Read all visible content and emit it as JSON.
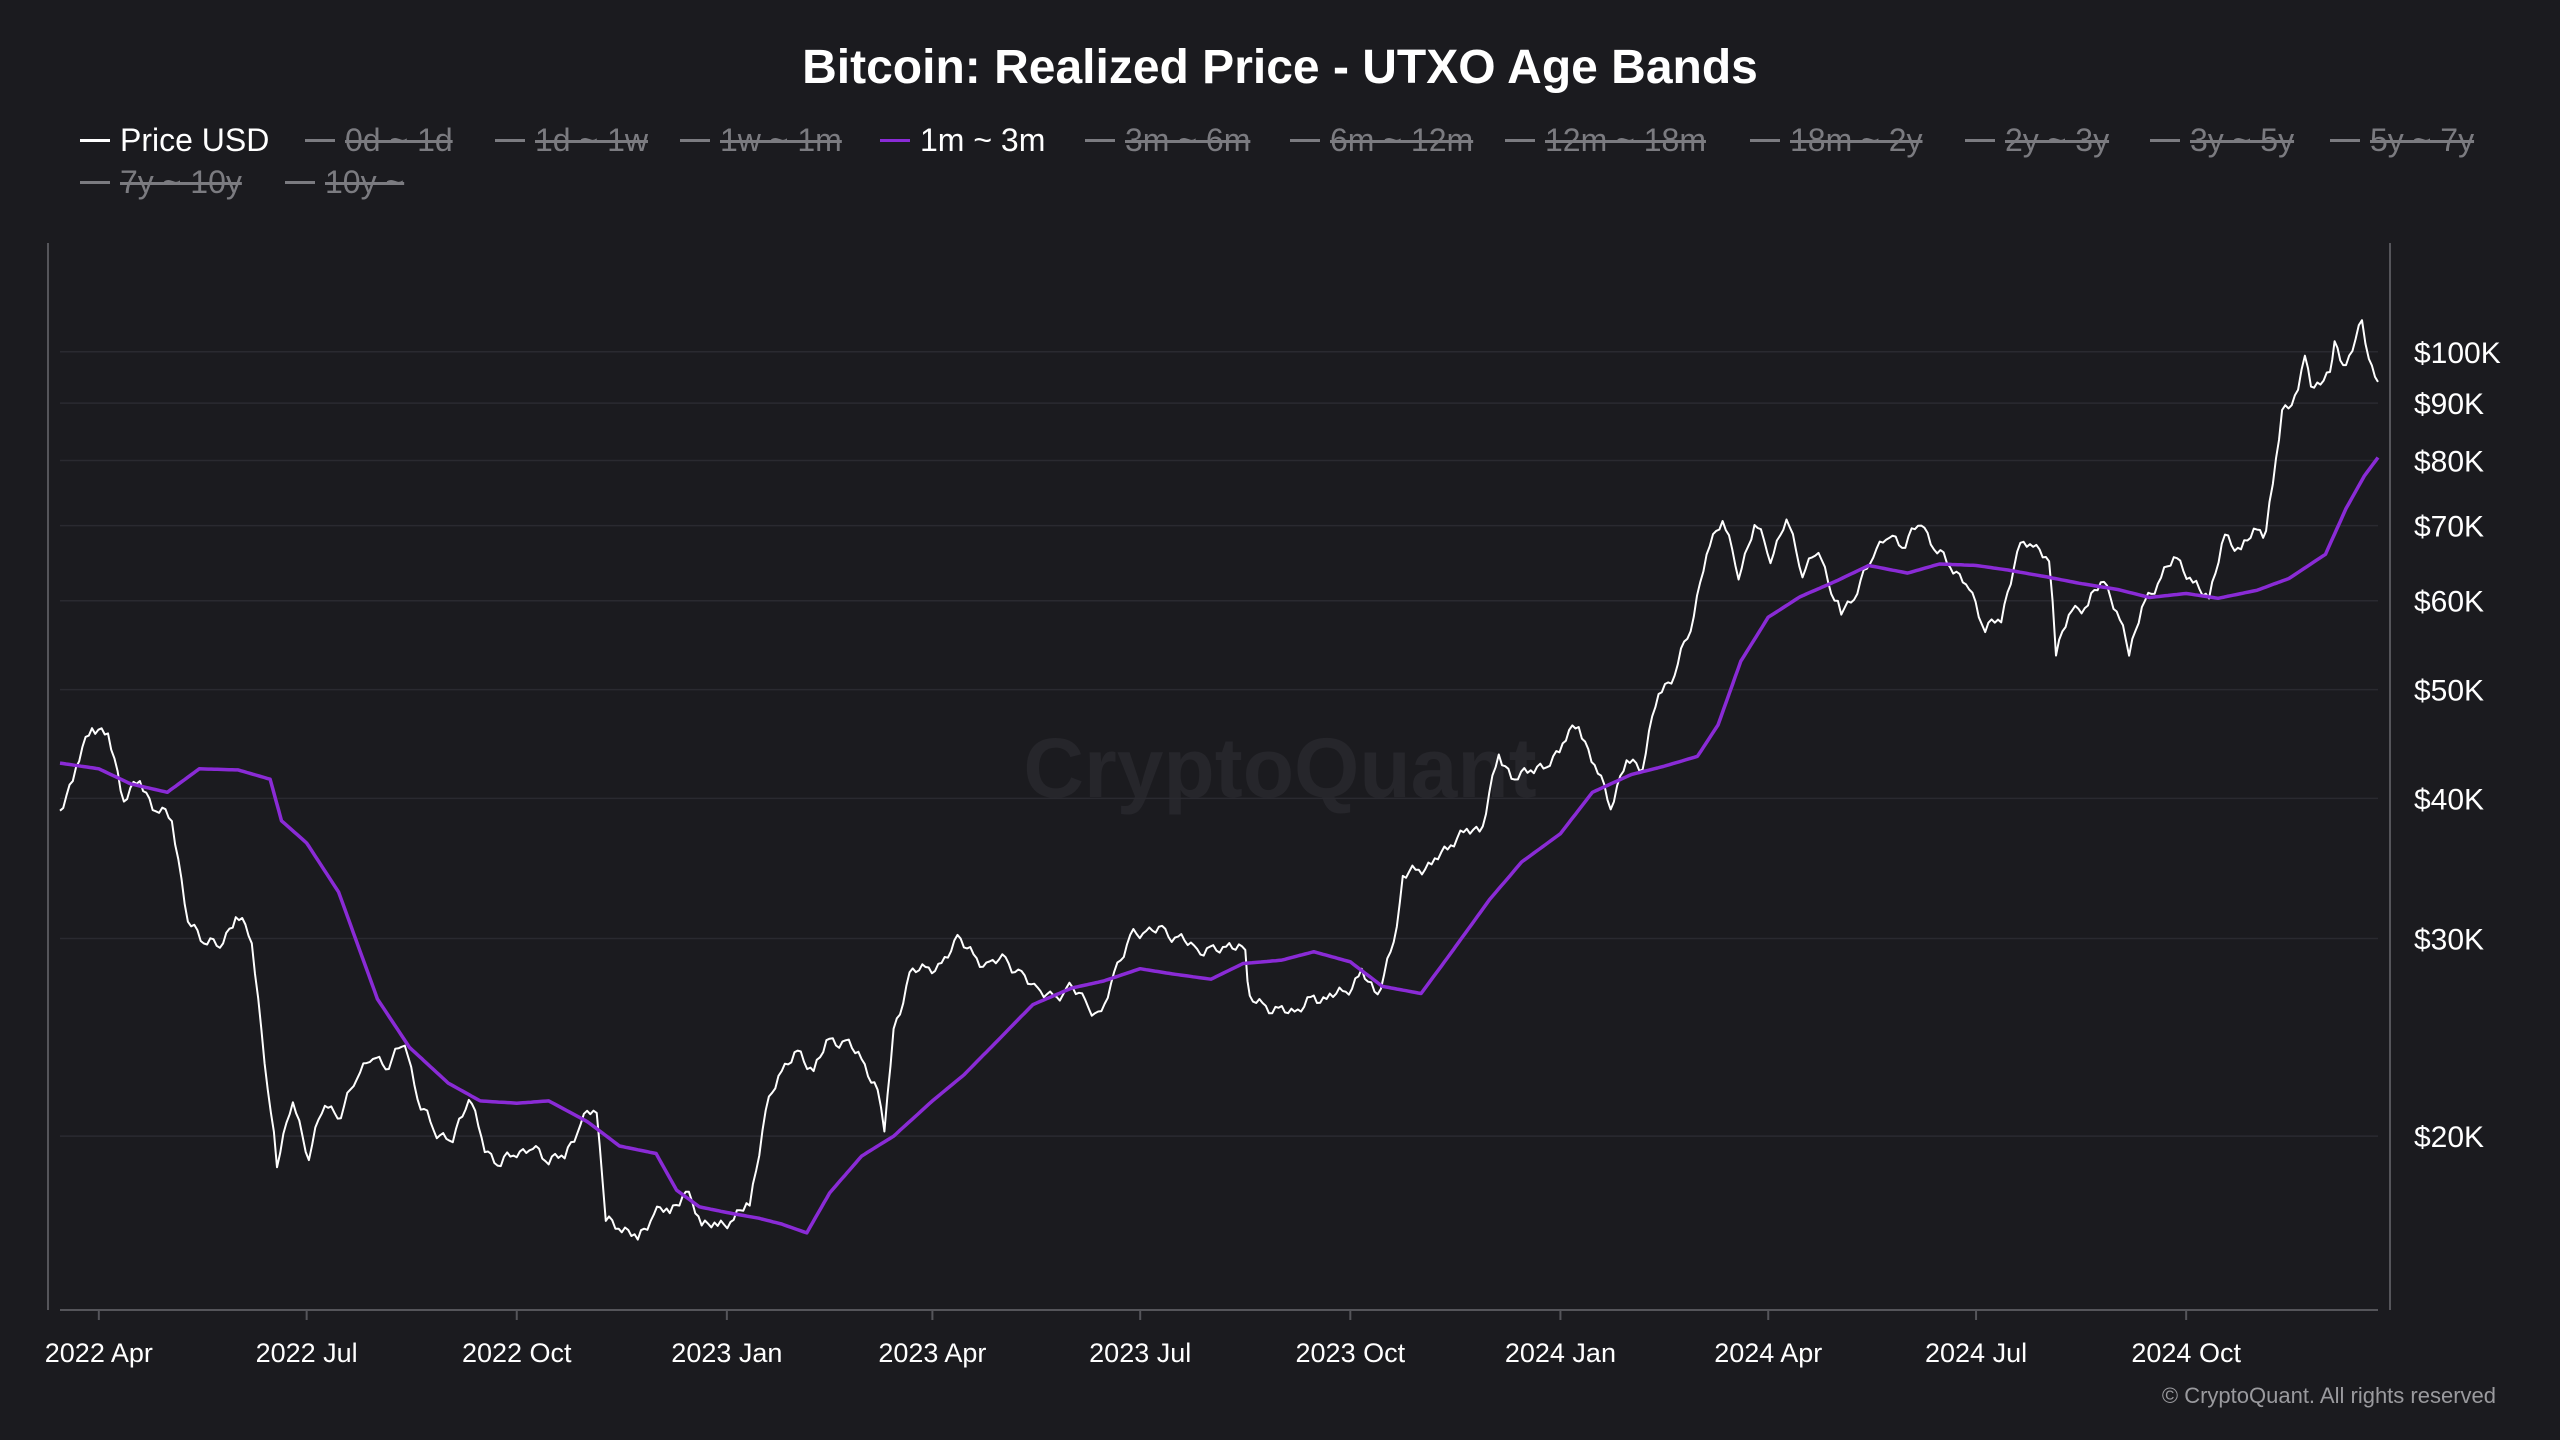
{
  "header": {
    "title": "Bitcoin: Realized Price - UTXO Age Bands"
  },
  "watermark": "CryptoQuant",
  "copyright": "© CryptoQuant. All rights reserved",
  "colors": {
    "background": "#1b1b1f",
    "price_line": "#ffffff",
    "band_1m_3m": "#8a2bd6",
    "legend_disabled": "#7b7b80",
    "grid": "#2a2a30",
    "axis": "#55555a"
  },
  "legend": {
    "items": [
      {
        "label": "Price USD",
        "enabled": true,
        "color": "#ffffff"
      },
      {
        "label": "0d ~ 1d",
        "enabled": false
      },
      {
        "label": "1d ~ 1w",
        "enabled": false
      },
      {
        "label": "1w ~ 1m",
        "enabled": false
      },
      {
        "label": "1m ~ 3m",
        "enabled": true,
        "color": "#8a2bd6"
      },
      {
        "label": "3m ~ 6m",
        "enabled": false
      },
      {
        "label": "6m ~ 12m",
        "enabled": false
      },
      {
        "label": "12m ~ 18m",
        "enabled": false
      },
      {
        "label": "18m ~ 2y",
        "enabled": false
      },
      {
        "label": "2y ~ 3y",
        "enabled": false
      },
      {
        "label": "3y ~ 5y",
        "enabled": false
      },
      {
        "label": "5y ~ 7y",
        "enabled": false
      },
      {
        "label": "7y ~ 10y",
        "enabled": false
      },
      {
        "label": "10y ~",
        "enabled": false
      }
    ]
  },
  "chart_data": {
    "type": "line",
    "title": "Bitcoin: Realized Price - UTXO Age Bands",
    "y_scale": "log",
    "ylim": [
      14000,
      125000
    ],
    "xlim": [
      "2022-03-15",
      "2024-12-24"
    ],
    "x_ticks": [
      {
        "date": "2022-04-01",
        "label": "2022 Apr"
      },
      {
        "date": "2022-07-01",
        "label": "2022 Jul"
      },
      {
        "date": "2022-10-01",
        "label": "2022 Oct"
      },
      {
        "date": "2023-01-01",
        "label": "2023 Jan"
      },
      {
        "date": "2023-04-01",
        "label": "2023 Apr"
      },
      {
        "date": "2023-07-01",
        "label": "2023 Jul"
      },
      {
        "date": "2023-10-01",
        "label": "2023 Oct"
      },
      {
        "date": "2024-01-01",
        "label": "2024 Jan"
      },
      {
        "date": "2024-04-01",
        "label": "2024 Apr"
      },
      {
        "date": "2024-07-01",
        "label": "2024 Jul"
      },
      {
        "date": "2024-10-01",
        "label": "2024 Oct"
      }
    ],
    "y_ticks": [
      {
        "value": 20000,
        "label": "$20K"
      },
      {
        "value": 30000,
        "label": "$30K"
      },
      {
        "value": 40000,
        "label": "$40K"
      },
      {
        "value": 50000,
        "label": "$50K"
      },
      {
        "value": 60000,
        "label": "$60K"
      },
      {
        "value": 70000,
        "label": "$70K"
      },
      {
        "value": 80000,
        "label": "$80K"
      },
      {
        "value": 90000,
        "label": "$90K"
      },
      {
        "value": 100000,
        "label": "$100K"
      }
    ],
    "grid": true,
    "legend_position": "top",
    "series": [
      {
        "name": "Price USD",
        "color": "#ffffff",
        "points": [
          [
            "2022-03-15",
            39000
          ],
          [
            "2022-03-22",
            42500
          ],
          [
            "2022-03-29",
            46500
          ],
          [
            "2022-04-05",
            45500
          ],
          [
            "2022-04-12",
            40000
          ],
          [
            "2022-04-19",
            41500
          ],
          [
            "2022-04-26",
            39000
          ],
          [
            "2022-05-03",
            38500
          ],
          [
            "2022-05-10",
            31000
          ],
          [
            "2022-05-17",
            30000
          ],
          [
            "2022-05-24",
            29500
          ],
          [
            "2022-05-31",
            31500
          ],
          [
            "2022-06-07",
            30000
          ],
          [
            "2022-06-14",
            22000
          ],
          [
            "2022-06-18",
            19000
          ],
          [
            "2022-06-25",
            21500
          ],
          [
            "2022-07-02",
            19200
          ],
          [
            "2022-07-09",
            21500
          ],
          [
            "2022-07-16",
            20800
          ],
          [
            "2022-07-23",
            22800
          ],
          [
            "2022-07-30",
            23500
          ],
          [
            "2022-08-06",
            23200
          ],
          [
            "2022-08-13",
            24300
          ],
          [
            "2022-08-20",
            21200
          ],
          [
            "2022-08-27",
            20200
          ],
          [
            "2022-09-03",
            19800
          ],
          [
            "2022-09-10",
            21800
          ],
          [
            "2022-09-17",
            19500
          ],
          [
            "2022-09-24",
            18900
          ],
          [
            "2022-10-01",
            19400
          ],
          [
            "2022-10-08",
            19500
          ],
          [
            "2022-10-15",
            19100
          ],
          [
            "2022-10-22",
            19200
          ],
          [
            "2022-10-29",
            20600
          ],
          [
            "2022-11-05",
            21200
          ],
          [
            "2022-11-09",
            16800
          ],
          [
            "2022-11-16",
            16600
          ],
          [
            "2022-11-23",
            16200
          ],
          [
            "2022-11-30",
            17100
          ],
          [
            "2022-12-07",
            17200
          ],
          [
            "2022-12-14",
            17800
          ],
          [
            "2022-12-21",
            16800
          ],
          [
            "2022-12-28",
            16600
          ],
          [
            "2023-01-04",
            16900
          ],
          [
            "2023-01-11",
            17400
          ],
          [
            "2023-01-18",
            21000
          ],
          [
            "2023-01-25",
            23000
          ],
          [
            "2023-02-01",
            23700
          ],
          [
            "2023-02-08",
            22900
          ],
          [
            "2023-02-15",
            24400
          ],
          [
            "2023-02-22",
            24200
          ],
          [
            "2023-03-01",
            23500
          ],
          [
            "2023-03-08",
            21800
          ],
          [
            "2023-03-11",
            20200
          ],
          [
            "2023-03-15",
            24800
          ],
          [
            "2023-03-22",
            27800
          ],
          [
            "2023-03-29",
            28300
          ],
          [
            "2023-04-05",
            28200
          ],
          [
            "2023-04-12",
            30200
          ],
          [
            "2023-04-19",
            28800
          ],
          [
            "2023-04-26",
            28400
          ],
          [
            "2023-05-03",
            28800
          ],
          [
            "2023-05-10",
            27700
          ],
          [
            "2023-05-17",
            27100
          ],
          [
            "2023-05-24",
            26400
          ],
          [
            "2023-05-31",
            27200
          ],
          [
            "2023-06-07",
            26300
          ],
          [
            "2023-06-14",
            25500
          ],
          [
            "2023-06-21",
            28500
          ],
          [
            "2023-06-28",
            30200
          ],
          [
            "2023-07-05",
            30500
          ],
          [
            "2023-07-12",
            30400
          ],
          [
            "2023-07-19",
            29900
          ],
          [
            "2023-07-26",
            29300
          ],
          [
            "2023-08-02",
            29200
          ],
          [
            "2023-08-09",
            29600
          ],
          [
            "2023-08-16",
            29100
          ],
          [
            "2023-08-18",
            26400
          ],
          [
            "2023-08-25",
            26100
          ],
          [
            "2023-09-01",
            25800
          ],
          [
            "2023-09-08",
            25900
          ],
          [
            "2023-09-15",
            26500
          ],
          [
            "2023-09-22",
            26600
          ],
          [
            "2023-09-29",
            26900
          ],
          [
            "2023-10-06",
            27900
          ],
          [
            "2023-10-13",
            26800
          ],
          [
            "2023-10-20",
            29600
          ],
          [
            "2023-10-24",
            34000
          ],
          [
            "2023-10-31",
            34600
          ],
          [
            "2023-11-07",
            35100
          ],
          [
            "2023-11-14",
            36500
          ],
          [
            "2023-11-21",
            37400
          ],
          [
            "2023-11-28",
            37800
          ],
          [
            "2023-12-05",
            43900
          ],
          [
            "2023-12-12",
            41400
          ],
          [
            "2023-12-19",
            42700
          ],
          [
            "2023-12-26",
            42500
          ],
          [
            "2024-01-02",
            45000
          ],
          [
            "2024-01-09",
            46500
          ],
          [
            "2024-01-16",
            42800
          ],
          [
            "2024-01-23",
            39500
          ],
          [
            "2024-01-30",
            43200
          ],
          [
            "2024-02-06",
            42800
          ],
          [
            "2024-02-13",
            49800
          ],
          [
            "2024-02-20",
            51600
          ],
          [
            "2024-02-27",
            57000
          ],
          [
            "2024-03-05",
            66000
          ],
          [
            "2024-03-12",
            71500
          ],
          [
            "2024-03-19",
            63000
          ],
          [
            "2024-03-26",
            70500
          ],
          [
            "2024-04-02",
            65600
          ],
          [
            "2024-04-09",
            71000
          ],
          [
            "2024-04-16",
            63800
          ],
          [
            "2024-04-23",
            66500
          ],
          [
            "2024-04-30",
            60500
          ],
          [
            "2024-05-03",
            59000
          ],
          [
            "2024-05-10",
            61000
          ],
          [
            "2024-05-17",
            66500
          ],
          [
            "2024-05-24",
            68500
          ],
          [
            "2024-05-31",
            67500
          ],
          [
            "2024-06-07",
            70700
          ],
          [
            "2024-06-14",
            66300
          ],
          [
            "2024-06-21",
            64300
          ],
          [
            "2024-06-28",
            61500
          ],
          [
            "2024-07-05",
            56800
          ],
          [
            "2024-07-12",
            57800
          ],
          [
            "2024-07-19",
            66500
          ],
          [
            "2024-07-26",
            67800
          ],
          [
            "2024-08-02",
            65000
          ],
          [
            "2024-08-05",
            54100
          ],
          [
            "2024-08-12",
            59000
          ],
          [
            "2024-08-19",
            59500
          ],
          [
            "2024-08-26",
            62900
          ],
          [
            "2024-09-02",
            57500
          ],
          [
            "2024-09-06",
            54000
          ],
          [
            "2024-09-13",
            60000
          ],
          [
            "2024-09-20",
            62900
          ],
          [
            "2024-09-27",
            65800
          ],
          [
            "2024-10-04",
            61900
          ],
          [
            "2024-10-11",
            60600
          ],
          [
            "2024-10-18",
            68400
          ],
          [
            "2024-10-25",
            66600
          ],
          [
            "2024-11-01",
            69500
          ],
          [
            "2024-11-05",
            68700
          ],
          [
            "2024-11-08",
            76500
          ],
          [
            "2024-11-12",
            88000
          ],
          [
            "2024-11-19",
            92300
          ],
          [
            "2024-11-22",
            98900
          ],
          [
            "2024-11-26",
            92000
          ],
          [
            "2024-12-03",
            96000
          ],
          [
            "2024-12-05",
            101000
          ],
          [
            "2024-12-10",
            97000
          ],
          [
            "2024-12-17",
            106000
          ],
          [
            "2024-12-20",
            97500
          ],
          [
            "2024-12-24",
            94000
          ]
        ]
      },
      {
        "name": "1m ~ 3m",
        "color": "#8a2bd6",
        "points": [
          [
            "2022-03-15",
            43000
          ],
          [
            "2022-04-01",
            42500
          ],
          [
            "2022-04-15",
            41200
          ],
          [
            "2022-05-01",
            40500
          ],
          [
            "2022-05-15",
            42500
          ],
          [
            "2022-06-01",
            42400
          ],
          [
            "2022-06-15",
            41600
          ],
          [
            "2022-06-20",
            38200
          ],
          [
            "2022-07-01",
            36500
          ],
          [
            "2022-07-15",
            33000
          ],
          [
            "2022-08-01",
            26500
          ],
          [
            "2022-08-15",
            24000
          ],
          [
            "2022-09-01",
            22300
          ],
          [
            "2022-09-15",
            21500
          ],
          [
            "2022-10-01",
            21400
          ],
          [
            "2022-10-15",
            21500
          ],
          [
            "2022-11-01",
            20600
          ],
          [
            "2022-11-15",
            19600
          ],
          [
            "2022-12-01",
            19300
          ],
          [
            "2022-12-10",
            17900
          ],
          [
            "2022-12-20",
            17300
          ],
          [
            "2023-01-01",
            17100
          ],
          [
            "2023-01-15",
            16900
          ],
          [
            "2023-01-25",
            16700
          ],
          [
            "2023-02-05",
            16400
          ],
          [
            "2023-02-15",
            17800
          ],
          [
            "2023-03-01",
            19200
          ],
          [
            "2023-03-15",
            20000
          ],
          [
            "2023-04-01",
            21500
          ],
          [
            "2023-04-15",
            22700
          ],
          [
            "2023-05-01",
            24500
          ],
          [
            "2023-05-15",
            26200
          ],
          [
            "2023-06-01",
            27100
          ],
          [
            "2023-06-15",
            27500
          ],
          [
            "2023-07-01",
            28200
          ],
          [
            "2023-07-15",
            27900
          ],
          [
            "2023-08-01",
            27600
          ],
          [
            "2023-08-15",
            28500
          ],
          [
            "2023-09-01",
            28700
          ],
          [
            "2023-09-15",
            29200
          ],
          [
            "2023-10-01",
            28600
          ],
          [
            "2023-10-15",
            27200
          ],
          [
            "2023-11-01",
            26800
          ],
          [
            "2023-11-15",
            29300
          ],
          [
            "2023-12-01",
            32500
          ],
          [
            "2023-12-15",
            35100
          ],
          [
            "2024-01-01",
            37200
          ],
          [
            "2024-01-15",
            40500
          ],
          [
            "2024-02-01",
            42000
          ],
          [
            "2024-02-15",
            42700
          ],
          [
            "2024-03-01",
            43600
          ],
          [
            "2024-03-10",
            46500
          ],
          [
            "2024-03-20",
            53000
          ],
          [
            "2024-04-01",
            58000
          ],
          [
            "2024-04-15",
            60500
          ],
          [
            "2024-05-01",
            62500
          ],
          [
            "2024-05-15",
            64500
          ],
          [
            "2024-06-01",
            63500
          ],
          [
            "2024-06-15",
            64700
          ],
          [
            "2024-07-01",
            64500
          ],
          [
            "2024-07-15",
            63900
          ],
          [
            "2024-08-01",
            63000
          ],
          [
            "2024-08-15",
            62200
          ],
          [
            "2024-09-01",
            61400
          ],
          [
            "2024-09-15",
            60400
          ],
          [
            "2024-10-01",
            60900
          ],
          [
            "2024-10-15",
            60300
          ],
          [
            "2024-11-01",
            61300
          ],
          [
            "2024-11-15",
            62800
          ],
          [
            "2024-12-01",
            66000
          ],
          [
            "2024-12-10",
            72500
          ],
          [
            "2024-12-18",
            77500
          ],
          [
            "2024-12-24",
            80500
          ]
        ]
      }
    ]
  }
}
